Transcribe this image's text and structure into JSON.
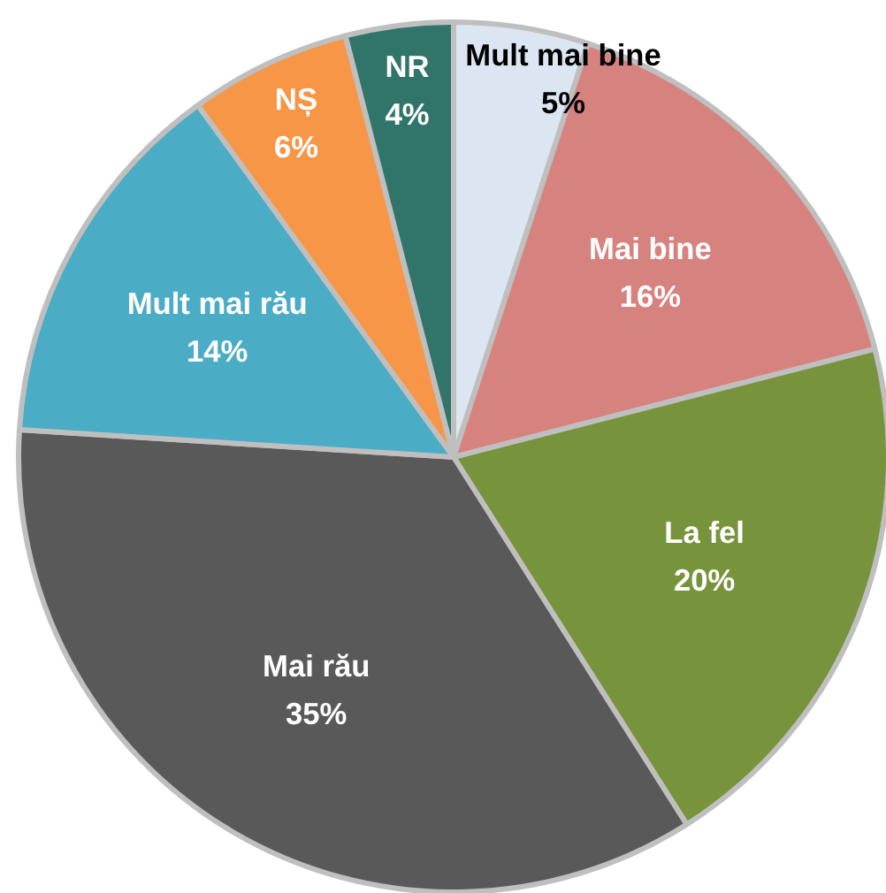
{
  "chart_data": {
    "type": "pie",
    "categories": [
      "Mult mai bine",
      "Mai bine",
      "La fel",
      "Mai rău",
      "Mult mai rău",
      "NȘ",
      "NR"
    ],
    "values": [
      5,
      16,
      20,
      35,
      14,
      6,
      4
    ],
    "value_labels": [
      "5%",
      "16%",
      "20%",
      "35%",
      "14%",
      "6%",
      "4%"
    ],
    "colors": [
      "#dce6f2",
      "#d6827f",
      "#77933c",
      "#595959",
      "#4bacc6",
      "#f79646",
      "#31756a"
    ],
    "legend": false
  }
}
